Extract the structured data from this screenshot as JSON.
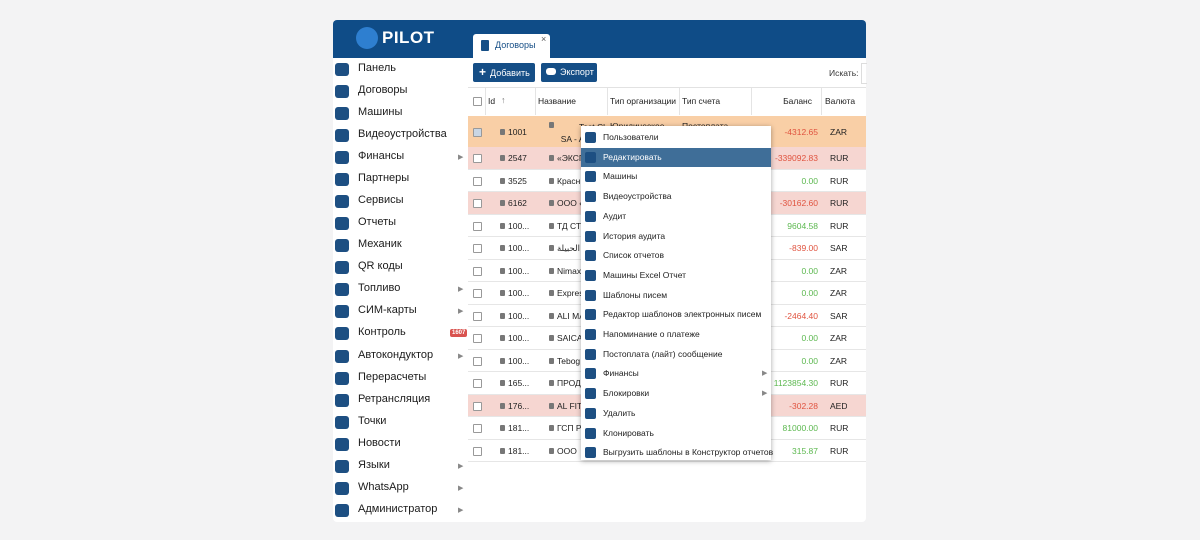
{
  "header": {
    "logo": "PILOT",
    "tab": "Договоры",
    "tab_close": "×"
  },
  "sidebar": {
    "items": [
      {
        "label": "Панель"
      },
      {
        "label": "Договоры"
      },
      {
        "label": "Машины"
      },
      {
        "label": "Видеоустройства"
      },
      {
        "label": "Финансы",
        "submenu": true
      },
      {
        "label": "Партнеры"
      },
      {
        "label": "Сервисы"
      },
      {
        "label": "Отчеты"
      },
      {
        "label": "Механик"
      },
      {
        "label": "QR коды"
      },
      {
        "label": "Топливо",
        "submenu": true
      },
      {
        "label": "СИМ-карты",
        "submenu": true
      },
      {
        "label": "Контроль",
        "badge": "1607"
      },
      {
        "label": "Автокондуктор",
        "submenu": true
      },
      {
        "label": "Перерасчеты"
      },
      {
        "label": "Ретрансляция"
      },
      {
        "label": "Точки"
      },
      {
        "label": "Новости"
      },
      {
        "label": "Языки",
        "submenu": true
      },
      {
        "label": "WhatsApp",
        "submenu": true
      },
      {
        "label": "Администратор",
        "submenu": true
      }
    ]
  },
  "toolbar": {
    "add": "Добавить",
    "export": "Экспорт",
    "search": "Искать:"
  },
  "table": {
    "columns": [
      "Id",
      "Название",
      "Тип организации",
      "Тип счета",
      "Баланс",
      "Валюта"
    ],
    "rows": [
      {
        "id": "1001",
        "name": "Test Cl\nSA - AVIS F",
        "org_type": "Юридическое",
        "account_type": "Постоплата",
        "balance": "-4312.65",
        "currency": "ZAR",
        "color": "#f9cfa6",
        "checked": true
      },
      {
        "id": "2547",
        "name": "«ЭКСП",
        "balance": "-339092.83",
        "currency": "RUR",
        "color": "#f6d6d1"
      },
      {
        "id": "3525",
        "name": "Красн",
        "balance": "0.00",
        "currency": "RUR",
        "color": "#ffffff"
      },
      {
        "id": "6162",
        "name": "ООО «",
        "balance": "-30162.60",
        "currency": "RUR",
        "color": "#f6d6d1"
      },
      {
        "id": "100...",
        "name": "ТД СТ",
        "balance": "9604.58",
        "currency": "RUR",
        "color": "#ffffff"
      },
      {
        "id": "100...",
        "name": "مؤسسة الحبيلة",
        "balance": "-839.00",
        "currency": "SAR",
        "color": "#ffffff"
      },
      {
        "id": "100...",
        "name": "Nimax",
        "balance": "0.00",
        "currency": "ZAR",
        "color": "#ffffff"
      },
      {
        "id": "100...",
        "name": "Expres",
        "balance": "0.00",
        "currency": "ZAR",
        "color": "#ffffff"
      },
      {
        "id": "100...",
        "name": "ALI MA",
        "balance": "-2464.40",
        "currency": "SAR",
        "color": "#ffffff"
      },
      {
        "id": "100...",
        "name": "SAICA",
        "balance": "0.00",
        "currency": "ZAR",
        "color": "#ffffff"
      },
      {
        "id": "100...",
        "name": "Tebog",
        "balance": "0.00",
        "currency": "ZAR",
        "color": "#ffffff"
      },
      {
        "id": "165...",
        "name": "ПРОД",
        "balance": "1123854.30",
        "currency": "RUR",
        "color": "#ffffff"
      },
      {
        "id": "176...",
        "name": "AL FIT",
        "balance": "-302.28",
        "currency": "AED",
        "color": "#f6d6d1"
      },
      {
        "id": "181...",
        "name": "ГСП Р",
        "balance": "81000.00",
        "currency": "RUR",
        "color": "#ffffff"
      },
      {
        "id": "181...",
        "name": "ООО",
        "balance": "315.87",
        "currency": "RUR",
        "color": "#ffffff"
      }
    ]
  },
  "context_menu": {
    "items": [
      {
        "label": "Пользователи"
      },
      {
        "label": "Редактировать",
        "active": true
      },
      {
        "label": "Машины"
      },
      {
        "label": "Видеоустройства"
      },
      {
        "label": "Аудит"
      },
      {
        "label": "История аудита"
      },
      {
        "label": "Список отчетов"
      },
      {
        "label": "Машины Excel Отчет"
      },
      {
        "label": "Шаблоны писем"
      },
      {
        "label": "Редактор шаблонов электронных писем"
      },
      {
        "label": "Напоминание о платеже"
      },
      {
        "label": "Постоплата (лайт) сообщение"
      },
      {
        "label": "Финансы",
        "submenu": true
      },
      {
        "label": "Блокировки",
        "submenu": true
      },
      {
        "label": "Удалить"
      },
      {
        "label": "Клонировать"
      },
      {
        "label": "Выгрузить шаблоны в Конструктор отчетов"
      }
    ]
  }
}
